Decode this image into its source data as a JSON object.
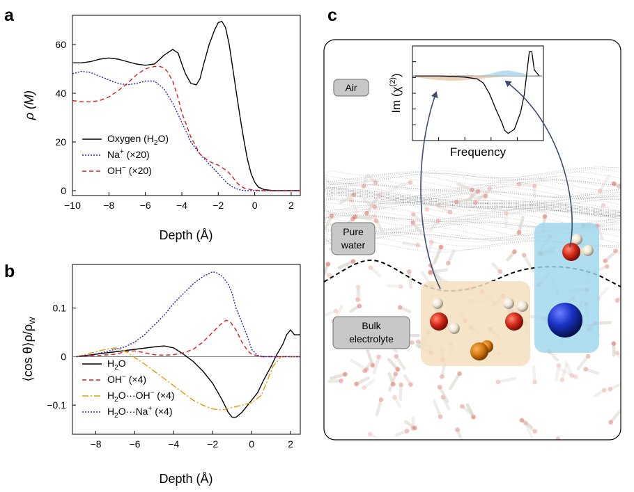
{
  "figure": {
    "panel_a_letter": "a",
    "panel_b_letter": "b",
    "panel_c_letter": "c"
  },
  "chart_data": [
    {
      "id": "a",
      "type": "line",
      "xlabel": "Depth (Å)",
      "ylabel": "ρ (M)",
      "xlim": [
        -10,
        2.5
      ],
      "ylim": [
        -2,
        72
      ],
      "xticks": [
        -10,
        -8,
        -6,
        -4,
        -2,
        0,
        2
      ],
      "xtick_labels": [
        "−10",
        "−8",
        "−6",
        "−4",
        "−2",
        "0",
        "2"
      ],
      "yticks": [
        0,
        20,
        40,
        60
      ],
      "ytick_labels": [
        "0",
        "20",
        "40",
        "60"
      ],
      "series": [
        {
          "name": "Oxygen (H2O)",
          "label": "Oxygen (H",
          "sub": "2",
          "suffix": "O)",
          "color": "#000000",
          "dash": "",
          "x": [
            -10,
            -9.5,
            -9,
            -8.5,
            -8,
            -7.5,
            -7,
            -6.5,
            -6,
            -5.5,
            -5.2,
            -5,
            -4.8,
            -4.5,
            -4.2,
            -4,
            -3.8,
            -3.5,
            -3.2,
            -3,
            -2.8,
            -2.5,
            -2.2,
            -2,
            -1.8,
            -1.6,
            -1.4,
            -1.2,
            -1,
            -0.8,
            -0.6,
            -0.4,
            -0.2,
            0,
            0.2,
            0.5,
            1,
            1.5,
            2,
            2.5
          ],
          "y": [
            52.5,
            52.5,
            53,
            54,
            54.5,
            54,
            53,
            52,
            51.5,
            52,
            54,
            55.5,
            56.5,
            58,
            56.5,
            52,
            48,
            44,
            43.5,
            46,
            52,
            60,
            66,
            69,
            69.5,
            67,
            60,
            50,
            40,
            30,
            21,
            13,
            7,
            3.5,
            1.5,
            0.5,
            0,
            0,
            0,
            0
          ]
        },
        {
          "name": "Na+ (×20)",
          "label": "Na",
          "sup": "+",
          "suffix": " (×20)",
          "color": "#1f1fb4",
          "dash": "2,2",
          "x": [
            -10,
            -9.5,
            -9,
            -8.5,
            -8,
            -7.5,
            -7,
            -6.5,
            -6,
            -5.5,
            -5,
            -4.5,
            -4,
            -3.5,
            -3,
            -2.5,
            -2,
            -1.5,
            -1.2,
            -1,
            -0.8,
            -0.5,
            0,
            0.5,
            1,
            2,
            2.5
          ],
          "y": [
            48,
            49,
            48.5,
            47,
            45.5,
            44,
            43.5,
            44,
            45,
            45,
            42,
            36,
            28,
            20,
            15,
            11,
            7,
            3,
            1.5,
            0.8,
            0.3,
            0,
            0,
            0,
            0,
            0,
            0
          ]
        },
        {
          "name": "OH− (×20)",
          "label": "OH",
          "sup": "−",
          "suffix": " (×20)",
          "color": "#e01a1a",
          "dash": "6,4",
          "x": [
            -10,
            -9.5,
            -9,
            -8.5,
            -8,
            -7.5,
            -7,
            -6.5,
            -6,
            -5.5,
            -5.2,
            -5,
            -4.8,
            -4.5,
            -4.2,
            -4,
            -3.5,
            -3,
            -2.5,
            -2,
            -1.5,
            -1.2,
            -1,
            -0.8,
            -0.5,
            0,
            0.5,
            1,
            2,
            2.5
          ],
          "y": [
            37,
            36.5,
            36.5,
            37,
            38.5,
            41,
            44,
            47.5,
            50,
            51,
            51,
            50.5,
            49,
            45,
            38,
            32,
            22,
            15,
            12,
            10.5,
            8,
            5.5,
            3.5,
            2,
            0.8,
            0.2,
            0,
            0,
            0,
            0
          ]
        }
      ]
    },
    {
      "id": "b",
      "type": "line",
      "xlabel": "Depth (Å)",
      "ylabel": "⟨cos θ⟩ρ/ρ",
      "ylabel_sub": "W",
      "xlim": [
        -9.2,
        2.5
      ],
      "ylim": [
        -0.16,
        0.19
      ],
      "xticks": [
        -8,
        -6,
        -4,
        -2,
        0,
        2
      ],
      "xtick_labels": [
        "−8",
        "−6",
        "−4",
        "−2",
        "0",
        "2"
      ],
      "yticks": [
        -0.1,
        0,
        0.1
      ],
      "ytick_labels": [
        "−0.1",
        "0",
        "0.1"
      ],
      "series": [
        {
          "name": "H2O",
          "label": "H",
          "sub": "2",
          "suffix": "O",
          "color": "#000000",
          "dash": "",
          "x": [
            -9,
            -8,
            -7,
            -6,
            -5,
            -4.5,
            -4,
            -3.5,
            -3,
            -2.5,
            -2,
            -1.5,
            -1.2,
            -1,
            -0.8,
            -0.5,
            -0.2,
            0,
            0.3,
            0.6,
            1,
            1.3,
            1.6,
            1.8,
            2,
            2.2,
            2.5
          ],
          "y": [
            0,
            0.005,
            0.01,
            0.015,
            0.02,
            0.022,
            0.018,
            0.005,
            -0.01,
            -0.03,
            -0.055,
            -0.09,
            -0.115,
            -0.125,
            -0.125,
            -0.115,
            -0.1,
            -0.09,
            -0.075,
            -0.05,
            -0.02,
            0.005,
            0.025,
            0.045,
            0.055,
            0.045,
            0.045
          ]
        },
        {
          "name": "OH− (×4)",
          "label": "OH",
          "sup": "−",
          "suffix": " (×4)",
          "color": "#e01a1a",
          "dash": "6,4",
          "x": [
            -9,
            -8,
            -7,
            -6.5,
            -6,
            -5.5,
            -5,
            -4.5,
            -4,
            -3.5,
            -3,
            -2.5,
            -2,
            -1.5,
            -1.3,
            -1.1,
            -0.8,
            -0.5,
            -0.2,
            0,
            0.5,
            1,
            2.5
          ],
          "y": [
            0,
            0.002,
            0.005,
            0.01,
            0.012,
            0.008,
            0.004,
            0.003,
            0.004,
            0.008,
            0.015,
            0.03,
            0.05,
            0.07,
            0.075,
            0.072,
            0.055,
            0.03,
            0.012,
            0.005,
            0,
            0,
            0
          ]
        },
        {
          "name": "H2O···OH− (×4)",
          "label": "H",
          "sub": "2",
          "suffix": "O···OH",
          "sup2": "−",
          "suffix2": " (×4)",
          "color": "#e59a00",
          "dash": "9,3,2,3",
          "x": [
            -9,
            -8.5,
            -8,
            -7.5,
            -7,
            -6.5,
            -6,
            -5.5,
            -5,
            -4.5,
            -4,
            -3.5,
            -3,
            -2.5,
            -2,
            -1.5,
            -1,
            -0.5,
            0,
            0.5,
            0.8,
            1.1,
            1.5,
            2,
            2.5
          ],
          "y": [
            0,
            0.005,
            0.01,
            0.015,
            0.018,
            0.012,
            -0.002,
            -0.015,
            -0.03,
            -0.045,
            -0.06,
            -0.075,
            -0.09,
            -0.1,
            -0.108,
            -0.11,
            -0.105,
            -0.1,
            -0.095,
            -0.08,
            -0.05,
            -0.02,
            0,
            0,
            0
          ]
        },
        {
          "name": "H2O···Na+ (×4)",
          "label": "H",
          "sub": "2",
          "suffix": "O···Na",
          "sup2": "+",
          "suffix2": " (×4)",
          "color": "#1f1fb4",
          "dash": "2,2",
          "x": [
            -9,
            -8,
            -7.5,
            -7,
            -6.5,
            -6,
            -5.5,
            -5,
            -4.5,
            -4,
            -3.5,
            -3,
            -2.5,
            -2,
            -1.8,
            -1.5,
            -1.2,
            -1,
            -0.8,
            -0.5,
            -0.2,
            0,
            0.3,
            0.6,
            1,
            2.5
          ],
          "y": [
            0,
            0.005,
            0.01,
            0.015,
            0.02,
            0.03,
            0.045,
            0.065,
            0.085,
            0.11,
            0.13,
            0.15,
            0.165,
            0.175,
            0.173,
            0.165,
            0.15,
            0.13,
            0.1,
            0.07,
            0.04,
            0.015,
            0.003,
            0,
            0,
            0
          ]
        }
      ]
    },
    {
      "id": "c-inset",
      "type": "area",
      "xlabel": "Frequency",
      "ylabel": "Im (χ",
      "ylabel_sup": "(2)",
      "ylabel_suffix": ")",
      "xlim": [
        0,
        1
      ],
      "ylim": [
        -1,
        0.45
      ],
      "series": [
        {
          "name": "spectrum",
          "color": "#000000",
          "x": [
            0,
            0.1,
            0.2,
            0.3,
            0.4,
            0.5,
            0.55,
            0.6,
            0.65,
            0.7,
            0.72,
            0.75,
            0.8,
            0.85,
            0.88,
            0.9,
            0.92,
            0.94,
            0.96,
            1
          ],
          "y": [
            0,
            0,
            0,
            -0.01,
            -0.02,
            -0.05,
            -0.12,
            -0.3,
            -0.55,
            -0.78,
            -0.9,
            -0.95,
            -0.88,
            -0.6,
            -0.3,
            0.05,
            0.4,
            0.4,
            0.1,
            0
          ]
        },
        {
          "name": "bulk-contribution",
          "color": "#e5c8a6",
          "x": [
            0,
            0.1,
            0.2,
            0.3,
            0.4,
            0.5,
            0.6,
            0.7,
            0.8,
            0.9,
            1
          ],
          "y": [
            -0.02,
            -0.05,
            -0.07,
            -0.08,
            -0.07,
            -0.05,
            -0.03,
            -0.015,
            -0.005,
            0,
            0
          ]
        },
        {
          "name": "surface-contribution",
          "color": "#a7d3ec",
          "x": [
            0.45,
            0.55,
            0.6,
            0.65,
            0.7,
            0.75,
            0.8,
            0.85,
            0.9,
            0.93
          ],
          "y": [
            0,
            0.015,
            0.03,
            0.06,
            0.085,
            0.09,
            0.075,
            0.05,
            0.02,
            0
          ]
        }
      ]
    }
  ],
  "scene": {
    "air_label": "Air",
    "pure_water_label_line1": "Pure",
    "pure_water_label_line2": "water",
    "bulk_label_line1": "Bulk",
    "bulk_label_line2": "electrolyte",
    "colors": {
      "oxygen": "#d42a1a",
      "hydrogen": "#efe6d6",
      "hydroxide": "#d77a12",
      "sodium": "#1a33c7",
      "bulk_box": "#f3dfbd",
      "surface_box": "#9ed7ee",
      "arrow": "#3d4c6e"
    }
  }
}
